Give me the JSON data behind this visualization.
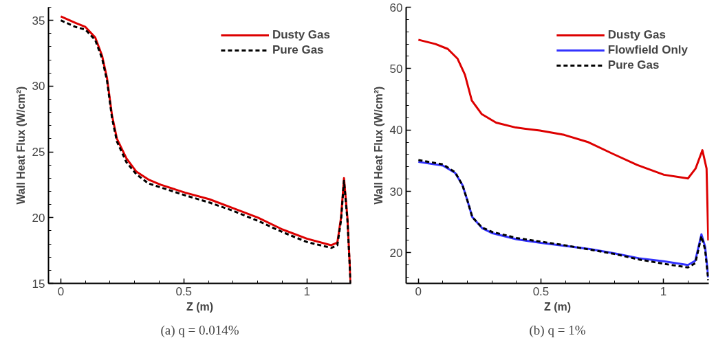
{
  "chart_data": [
    {
      "type": "line",
      "xlabel": "Z (m)",
      "ylabel": "Wall Heat Flux (W/cm²)",
      "annotations": [
        "(a) q = 0.014%"
      ],
      "xlim": [
        -0.05,
        1.18
      ],
      "ylim": [
        15,
        36
      ],
      "xticks": [
        0,
        0.5,
        1
      ],
      "yticks": [
        15,
        20,
        25,
        30,
        35
      ],
      "grid": false,
      "legend": "top right",
      "series": [
        {
          "name": "Dusty Gas",
          "color": "#dd0000",
          "line_style": "solid",
          "x": [
            0,
            0.06,
            0.1,
            0.14,
            0.168,
            0.188,
            0.208,
            0.228,
            0.267,
            0.307,
            0.356,
            0.406,
            0.505,
            0.604,
            0.703,
            0.802,
            0.901,
            1.0,
            1.099,
            1.124,
            1.139,
            1.151,
            1.165,
            1.178
          ],
          "values": [
            35.3,
            34.8,
            34.5,
            33.7,
            32.3,
            30.6,
            27.8,
            26.0,
            24.5,
            23.5,
            22.9,
            22.5,
            21.9,
            21.4,
            20.7,
            20.0,
            19.1,
            18.4,
            17.9,
            18.1,
            20.0,
            23.0,
            20.0,
            15
          ]
        },
        {
          "name": "Pure Gas",
          "color": "#000000",
          "line_style": "dashed",
          "x": [
            0,
            0.06,
            0.1,
            0.14,
            0.168,
            0.188,
            0.208,
            0.228,
            0.267,
            0.307,
            0.356,
            0.406,
            0.505,
            0.604,
            0.703,
            0.802,
            0.901,
            1.0,
            1.099,
            1.124,
            1.139,
            1.151,
            1.165,
            1.178
          ],
          "values": [
            35.0,
            34.5,
            34.3,
            33.5,
            32.1,
            30.4,
            27.6,
            25.8,
            24.2,
            23.3,
            22.6,
            22.3,
            21.7,
            21.15,
            20.5,
            19.75,
            18.9,
            18.15,
            17.7,
            17.9,
            19.8,
            22.8,
            19.8,
            15
          ]
        }
      ]
    },
    {
      "type": "line",
      "xlabel": "Z (m)",
      "ylabel": "Wall Heat Flux (W/cm²)",
      "annotations": [
        "(b) q = 1%"
      ],
      "xlim": [
        -0.05,
        1.185
      ],
      "ylim": [
        15,
        60
      ],
      "xticks": [
        0,
        0.5,
        1
      ],
      "yticks": [
        20,
        30,
        40,
        50,
        60
      ],
      "grid": false,
      "legend": "top right",
      "series": [
        {
          "name": "Dusty Gas",
          "color": "#dd0000",
          "line_style": "solid",
          "x": [
            0,
            0.07,
            0.12,
            0.16,
            0.19,
            0.218,
            0.258,
            0.317,
            0.397,
            0.496,
            0.595,
            0.694,
            0.794,
            0.893,
            1.002,
            1.1,
            1.131,
            1.159,
            1.176,
            1.183
          ],
          "values": [
            54.7,
            54.0,
            53.2,
            51.6,
            49.0,
            44.8,
            42.6,
            41.2,
            40.4,
            39.9,
            39.2,
            38.0,
            36.1,
            34.3,
            32.7,
            32.1,
            33.7,
            36.7,
            33.7,
            22
          ]
        },
        {
          "name": "Flowfield Only",
          "color": "#3333ff",
          "line_style": "solid",
          "x": [
            0,
            0.1,
            0.15,
            0.18,
            0.2,
            0.22,
            0.26,
            0.3,
            0.4,
            0.5,
            0.6,
            0.7,
            0.8,
            0.9,
            1.0,
            1.1,
            1.13,
            1.155,
            1.17,
            1.183
          ],
          "values": [
            34.8,
            34.2,
            33.0,
            31.0,
            28.5,
            25.8,
            24.0,
            23.2,
            22.2,
            21.6,
            21.1,
            20.6,
            19.9,
            19.1,
            18.6,
            18.0,
            18.7,
            23.0,
            21.0,
            16
          ]
        },
        {
          "name": "Pure Gas",
          "color": "#000000",
          "line_style": "dashed",
          "x": [
            0,
            0.1,
            0.15,
            0.18,
            0.2,
            0.22,
            0.26,
            0.3,
            0.4,
            0.5,
            0.6,
            0.7,
            0.8,
            0.9,
            1.0,
            1.1,
            1.13,
            1.155,
            1.17,
            1.183
          ],
          "values": [
            35.1,
            34.4,
            33.1,
            31.0,
            28.5,
            25.8,
            24.1,
            23.4,
            22.4,
            21.8,
            21.2,
            20.5,
            19.8,
            18.9,
            18.2,
            17.6,
            18.3,
            22.7,
            20.5,
            15.5
          ]
        }
      ]
    }
  ]
}
